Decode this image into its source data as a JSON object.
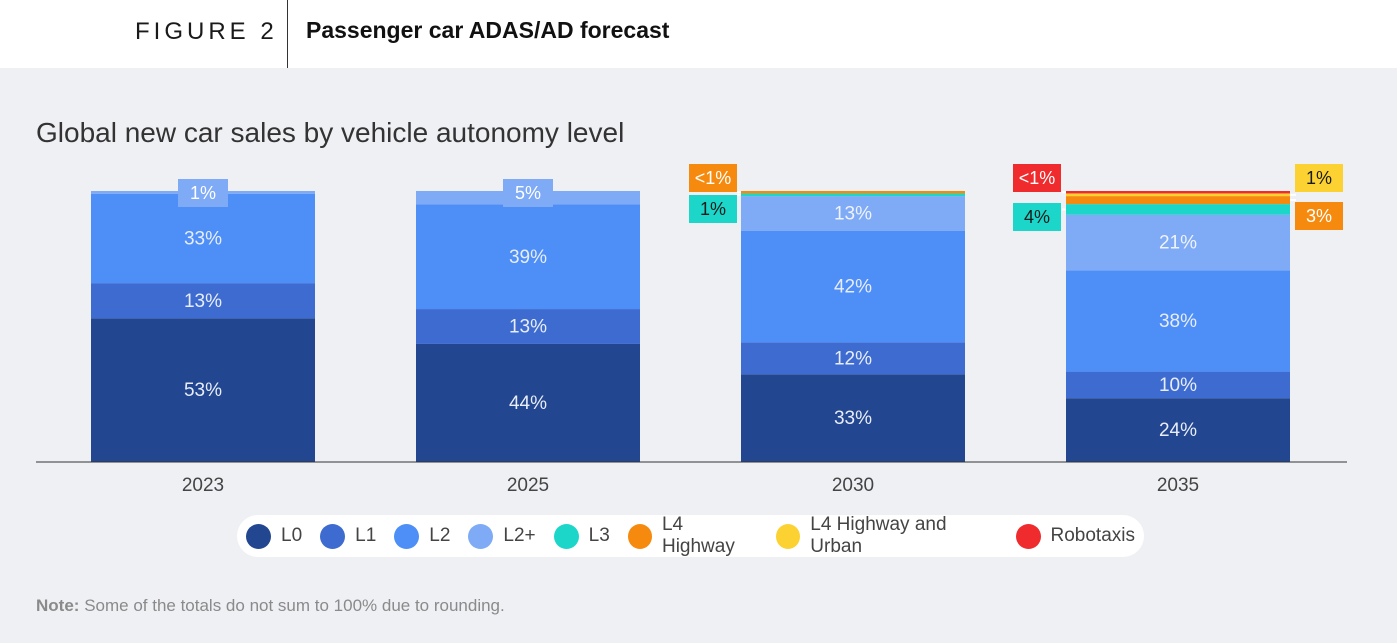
{
  "header": {
    "figure_label": "FIGURE 2",
    "title": "Passenger car ADAS/AD forecast"
  },
  "chart_data": {
    "type": "bar",
    "stacked": true,
    "title": "Global new car sales by vehicle autonomy level",
    "xlabel": "",
    "ylabel": "",
    "ylim": [
      0,
      100
    ],
    "categories": [
      "2023",
      "2025",
      "2030",
      "2035"
    ],
    "series": [
      {
        "name": "L0",
        "color": "#22468f",
        "values": [
          53,
          44,
          33,
          24
        ],
        "labels": [
          "53%",
          "44%",
          "33%",
          "24%"
        ]
      },
      {
        "name": "L1",
        "color": "#3d6bd0",
        "values": [
          13,
          13,
          12,
          10
        ],
        "labels": [
          "13%",
          "13%",
          "12%",
          "10%"
        ]
      },
      {
        "name": "L2",
        "color": "#4d8ef7",
        "values": [
          33,
          39,
          42,
          38
        ],
        "labels": [
          "33%",
          "39%",
          "42%",
          "38%"
        ]
      },
      {
        "name": "L2+",
        "color": "#7eaaf6",
        "values": [
          1,
          5,
          13,
          21
        ],
        "labels": [
          "1%",
          "5%",
          "13%",
          "21%"
        ]
      },
      {
        "name": "L3",
        "color": "#1bd6c9",
        "values": [
          0,
          0,
          1,
          4
        ],
        "labels": [
          "",
          "",
          "1%",
          "4%"
        ]
      },
      {
        "name": "L4 Highway",
        "color": "#f68a0e",
        "values": [
          0,
          0,
          0.4,
          3
        ],
        "labels": [
          "",
          "",
          "<1%",
          "3%"
        ]
      },
      {
        "name": "L4 Highway and Urban",
        "color": "#fcd232",
        "values": [
          0,
          0,
          0,
          1
        ],
        "labels": [
          "",
          "",
          "",
          "1%"
        ]
      },
      {
        "name": "Robotaxis",
        "color": "#ef2b2d",
        "values": [
          0,
          0,
          0,
          0.4
        ],
        "labels": [
          "",
          "",
          "",
          "<1%"
        ]
      }
    ]
  },
  "legend": {
    "items": [
      {
        "label": "L0",
        "color": "#22468f"
      },
      {
        "label": "L1",
        "color": "#3d6bd0"
      },
      {
        "label": "L2",
        "color": "#4d8ef7"
      },
      {
        "label": "L2+",
        "color": "#7eaaf6"
      },
      {
        "label": "L3",
        "color": "#1bd6c9"
      },
      {
        "label": "L4 Highway",
        "color": "#f68a0e"
      },
      {
        "label": "L4 Highway and Urban",
        "color": "#fcd232"
      },
      {
        "label": "Robotaxis",
        "color": "#ef2b2d"
      }
    ]
  },
  "note": {
    "label": "Note:",
    "text": "Some of the totals do not sum to 100% due to rounding."
  }
}
